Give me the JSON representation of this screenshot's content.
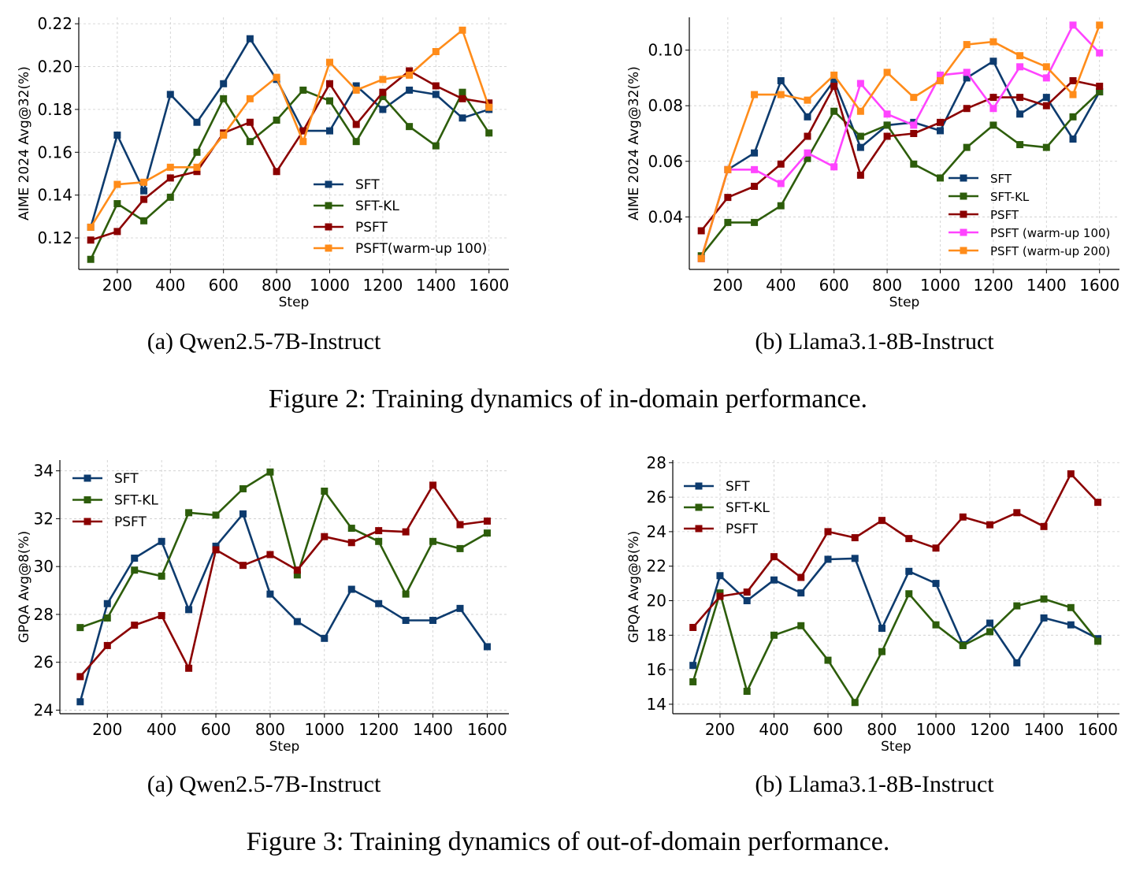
{
  "figures": [
    {
      "caption": "Figure 2: Training dynamics of in-domain performance."
    },
    {
      "caption": "Figure 3: Training dynamics of out-of-domain performance."
    }
  ],
  "chart_data": [
    {
      "type": "line",
      "subcaption": "(a) Qwen2.5-7B-Instruct",
      "xlabel": "Step",
      "ylabel": "AIME 2024 Avg@32(%)",
      "x": [
        100,
        200,
        300,
        400,
        500,
        600,
        700,
        800,
        900,
        1000,
        1100,
        1200,
        1300,
        1400,
        1500,
        1600
      ],
      "xticks": [
        200,
        400,
        600,
        800,
        1000,
        1200,
        1400,
        1600
      ],
      "xlim": [
        55,
        1675
      ],
      "yticks": [
        0.12,
        0.14,
        0.16,
        0.18,
        0.2,
        0.22
      ],
      "ytick_labels": [
        "0.12",
        "0.14",
        "0.16",
        "0.18",
        "0.20",
        "0.22"
      ],
      "ylim": [
        0.1053,
        0.223
      ],
      "grid": true,
      "legend": "lower-right",
      "series": [
        {
          "name": "SFT",
          "color": "#0d3b6e",
          "values": [
            0.125,
            0.168,
            0.142,
            0.187,
            0.174,
            0.192,
            0.213,
            0.194,
            0.17,
            0.17,
            0.191,
            0.18,
            0.189,
            0.187,
            0.176,
            0.18
          ]
        },
        {
          "name": "SFT-KL",
          "color": "#2d5d0b",
          "values": [
            0.11,
            0.136,
            0.128,
            0.139,
            0.16,
            0.185,
            0.165,
            0.175,
            0.189,
            0.184,
            0.165,
            0.186,
            0.172,
            0.163,
            0.188,
            0.169
          ]
        },
        {
          "name": "PSFT",
          "color": "#8b0000",
          "values": [
            0.119,
            0.123,
            0.138,
            0.148,
            0.151,
            0.169,
            0.174,
            0.151,
            0.17,
            0.192,
            0.173,
            0.188,
            0.198,
            0.191,
            0.185,
            0.183
          ]
        },
        {
          "name": "PSFT(warm-up 100)",
          "color": "#ff8c1a",
          "values": [
            0.125,
            0.145,
            0.146,
            0.153,
            0.153,
            0.168,
            0.185,
            0.195,
            0.165,
            0.202,
            0.189,
            0.194,
            0.196,
            0.207,
            0.217,
            0.181
          ]
        }
      ]
    },
    {
      "type": "line",
      "subcaption": "(b) Llama3.1-8B-Instruct",
      "xlabel": "Step",
      "ylabel": "AIME 2024 Avg@32(%)",
      "x": [
        100,
        200,
        300,
        400,
        500,
        600,
        700,
        800,
        900,
        1000,
        1100,
        1200,
        1300,
        1400,
        1500,
        1600
      ],
      "xticks": [
        200,
        400,
        600,
        800,
        1000,
        1200,
        1400,
        1600
      ],
      "xlim": [
        55,
        1675
      ],
      "yticks": [
        0.04,
        0.06,
        0.08,
        0.1
      ],
      "ytick_labels": [
        "0.04",
        "0.06",
        "0.08",
        "0.10"
      ],
      "ylim": [
        0.0211,
        0.1118
      ],
      "grid": true,
      "legend": "lower-right",
      "series": [
        {
          "name": "SFT",
          "color": "#0d3b6e",
          "values": [
            0.025,
            0.057,
            0.063,
            0.089,
            0.076,
            0.089,
            0.065,
            0.073,
            0.074,
            0.071,
            0.09,
            0.096,
            0.077,
            0.083,
            0.068,
            0.085
          ]
        },
        {
          "name": "SFT-KL",
          "color": "#2d5d0b",
          "values": [
            0.026,
            0.038,
            0.038,
            0.044,
            0.061,
            0.078,
            0.069,
            0.073,
            0.059,
            0.054,
            0.065,
            0.073,
            0.066,
            0.065,
            0.076,
            0.085
          ]
        },
        {
          "name": "PSFT",
          "color": "#8b0000",
          "values": [
            0.035,
            0.047,
            0.051,
            0.059,
            0.069,
            0.087,
            0.055,
            0.069,
            0.07,
            0.074,
            0.079,
            0.083,
            0.083,
            0.08,
            0.089,
            0.087
          ]
        },
        {
          "name": "PSFT (warm-up 100)",
          "color": "#ff44ff",
          "values": [
            0.025,
            0.057,
            0.057,
            0.052,
            0.063,
            0.058,
            0.088,
            0.077,
            0.073,
            0.091,
            0.092,
            0.079,
            0.094,
            0.09,
            0.109,
            0.099
          ]
        },
        {
          "name": "PSFT (warm-up 200)",
          "color": "#ff8c1a",
          "values": [
            0.025,
            0.057,
            0.084,
            0.084,
            0.082,
            0.091,
            0.078,
            0.092,
            0.083,
            0.089,
            0.102,
            0.103,
            0.098,
            0.094,
            0.084,
            0.109
          ]
        }
      ]
    },
    {
      "type": "line",
      "subcaption": "(a) Qwen2.5-7B-Instruct",
      "xlabel": "Step",
      "ylabel": "GPQA Avg@8(%)",
      "x": [
        100,
        200,
        300,
        400,
        500,
        600,
        700,
        800,
        900,
        1000,
        1100,
        1200,
        1300,
        1400,
        1500,
        1600
      ],
      "xticks": [
        200,
        400,
        600,
        800,
        1000,
        1200,
        1400,
        1600
      ],
      "xlim": [
        25,
        1680
      ],
      "yticks": [
        24,
        26,
        28,
        30,
        32,
        34
      ],
      "ytick_labels": [
        "24",
        "26",
        "28",
        "30",
        "32",
        "34"
      ],
      "ylim": [
        23.85,
        34.45
      ],
      "grid": true,
      "legend": "upper-left",
      "series": [
        {
          "name": "SFT",
          "color": "#0d3b6e",
          "values": [
            24.35,
            28.45,
            30.35,
            31.05,
            28.2,
            30.85,
            32.2,
            28.85,
            27.7,
            27.0,
            29.05,
            28.45,
            27.75,
            27.75,
            28.25,
            26.65
          ]
        },
        {
          "name": "SFT-KL",
          "color": "#2d5d0b",
          "values": [
            27.45,
            27.85,
            29.85,
            29.6,
            32.25,
            32.15,
            33.25,
            33.95,
            29.65,
            33.15,
            31.6,
            31.05,
            28.85,
            31.05,
            30.75,
            31.4
          ]
        },
        {
          "name": "PSFT",
          "color": "#8b0000",
          "values": [
            25.4,
            26.7,
            27.55,
            27.95,
            25.75,
            30.7,
            30.05,
            30.5,
            29.85,
            31.25,
            31.0,
            31.5,
            31.45,
            33.4,
            31.75,
            31.9
          ]
        }
      ]
    },
    {
      "type": "line",
      "subcaption": "(b) Llama3.1-8B-Instruct",
      "xlabel": "Step",
      "ylabel": "GPQA Avg@8(%)",
      "x": [
        100,
        200,
        300,
        400,
        500,
        600,
        700,
        800,
        900,
        1000,
        1100,
        1200,
        1300,
        1400,
        1500,
        1600
      ],
      "xticks": [
        200,
        400,
        600,
        800,
        1000,
        1200,
        1400,
        1600
      ],
      "xlim": [
        25,
        1680
      ],
      "yticks": [
        14,
        16,
        18,
        20,
        22,
        24,
        26,
        28
      ],
      "ytick_labels": [
        "14",
        "16",
        "18",
        "20",
        "22",
        "24",
        "26",
        "28"
      ],
      "ylim": [
        13.45,
        28.15
      ],
      "grid": true,
      "legend": "upper-left",
      "series": [
        {
          "name": "SFT",
          "color": "#0d3b6e",
          "values": [
            16.25,
            21.45,
            20.0,
            21.2,
            20.45,
            22.4,
            22.45,
            18.4,
            21.7,
            21.0,
            17.45,
            18.7,
            16.4,
            19.0,
            18.6,
            17.8
          ]
        },
        {
          "name": "SFT-KL",
          "color": "#2d5d0b",
          "values": [
            15.3,
            20.45,
            14.75,
            18.0,
            18.55,
            16.55,
            14.1,
            17.05,
            20.4,
            18.6,
            17.4,
            18.2,
            19.7,
            20.1,
            19.6,
            17.65
          ]
        },
        {
          "name": "PSFT",
          "color": "#8b0000",
          "values": [
            18.45,
            20.25,
            20.5,
            22.55,
            21.35,
            24.0,
            23.65,
            24.65,
            23.6,
            23.05,
            24.85,
            24.4,
            25.1,
            24.3,
            27.35,
            25.7
          ]
        }
      ]
    }
  ]
}
